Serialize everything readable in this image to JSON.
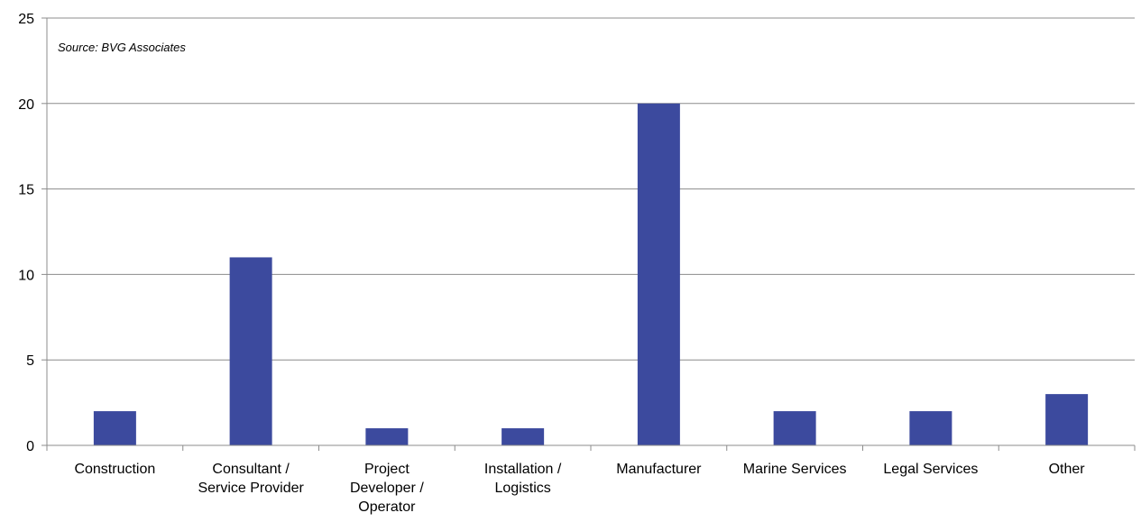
{
  "chart_data": {
    "type": "bar",
    "categories": [
      [
        "Construction"
      ],
      [
        "Consultant /",
        "Service Provider"
      ],
      [
        "Project",
        "Developer /",
        "Operator"
      ],
      [
        "Installation /",
        "Logistics"
      ],
      [
        "Manufacturer"
      ],
      [
        "Marine Services"
      ],
      [
        "Legal Services"
      ],
      [
        "Other"
      ]
    ],
    "values": [
      2,
      11,
      1,
      1,
      20,
      2,
      2,
      3
    ],
    "ylim": [
      0,
      25
    ],
    "yticks": [
      0,
      5,
      10,
      15,
      20,
      25
    ],
    "grid": true,
    "annotation": "Source: BVG Associates",
    "colors": {
      "bar": "#3c4a9e",
      "grid": "#8c8c8c",
      "axis": "#8c8c8c"
    }
  }
}
